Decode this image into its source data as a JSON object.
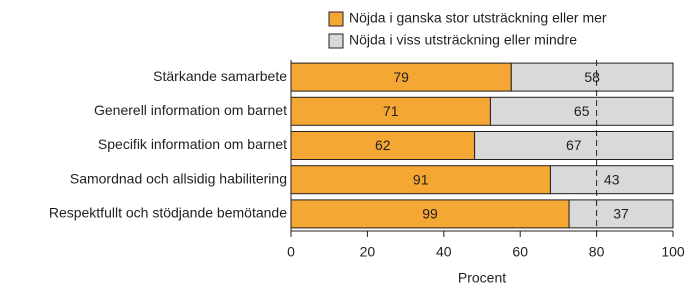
{
  "chart_data": {
    "type": "bar",
    "orientation": "horizontal",
    "stacking": "percent",
    "x_label": "Procent",
    "categories": [
      "Stärkande samarbete",
      "Generell information om barnet",
      "Specifik information om barnet",
      "Samordnad och allsidig habilitering",
      "Respektfullt och stödjande bemötande"
    ],
    "series": [
      {
        "name": "Nöjda i ganska stor utsträckning eller mer",
        "color": "#f5a733",
        "values": [
          79,
          71,
          62,
          91,
          99
        ]
      },
      {
        "name": "Nöjda i viss utsträckning eller mindre",
        "color": "#d9d9d9",
        "values": [
          58,
          65,
          67,
          43,
          37
        ]
      }
    ],
    "xlim": [
      0,
      100
    ],
    "xticks": [
      0,
      20,
      40,
      60,
      80,
      100
    ],
    "reference_line": 80,
    "legend": "top"
  }
}
